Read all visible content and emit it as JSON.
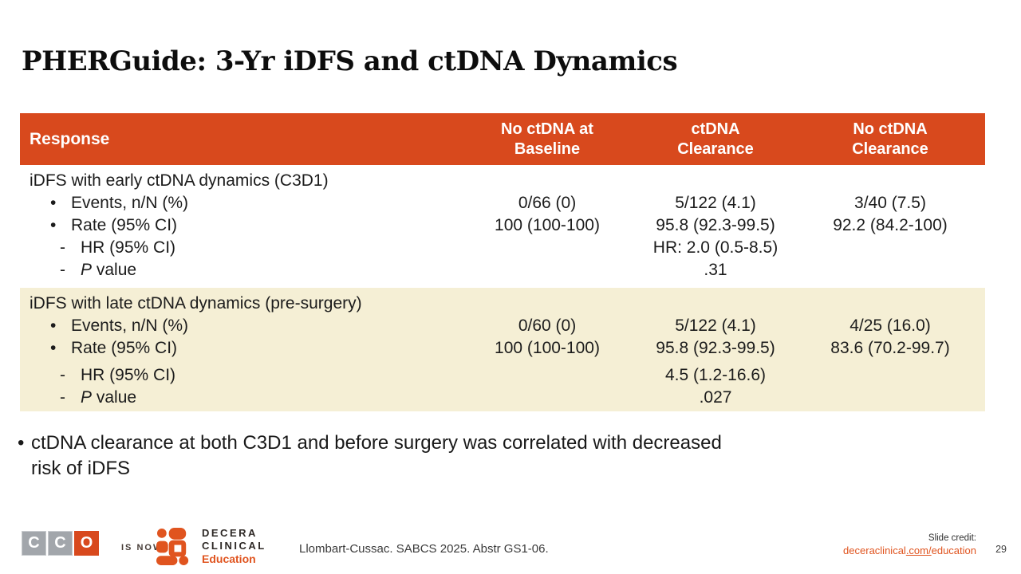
{
  "slide": {
    "title": "PHERGuide: 3-Yr iDFS and ctDNA Dynamics",
    "page_number": "29"
  },
  "table": {
    "header": {
      "response": "Response",
      "cols": [
        {
          "line1": "No ctDNA at",
          "line2": "Baseline"
        },
        {
          "line1": "ctDNA",
          "line2": "Clearance"
        },
        {
          "line1": "No ctDNA",
          "line2": "Clearance"
        }
      ]
    },
    "groups": [
      {
        "bg": "white",
        "lines": [
          {
            "label": {
              "text": "iDFS with early ctDNA dynamics (C3D1)",
              "level": 0
            },
            "values": [
              "",
              "",
              ""
            ]
          },
          {
            "label": {
              "bullet": "•",
              "text": "Events, n/N (%)",
              "level": 1
            },
            "values": [
              "0/66 (0)",
              "5/122 (4.1)",
              "3/40 (7.5)"
            ]
          },
          {
            "label": {
              "bullet": "•",
              "text": "Rate (95% CI)",
              "level": 1
            },
            "values": [
              "100 (100-100)",
              "95.8 (92.3-99.5)",
              "92.2 (84.2-100)"
            ]
          },
          {
            "label": {
              "bullet": "-",
              "text": "HR (95% CI)",
              "level": 2
            },
            "values": [
              "",
              "HR: 2.0 (0.5-8.5)",
              ""
            ]
          },
          {
            "label": {
              "bullet": "-",
              "text": "P value",
              "level": 2,
              "italic_first": true
            },
            "values": [
              "",
              ".31",
              ""
            ]
          }
        ]
      },
      {
        "bg": "cream",
        "lines": [
          {
            "label": {
              "text": "iDFS with late ctDNA dynamics (pre-surgery)",
              "level": 0
            },
            "values": [
              "",
              "",
              ""
            ]
          },
          {
            "label": {
              "bullet": "•",
              "text": "Events, n/N (%)",
              "level": 1
            },
            "values": [
              "0/60 (0)",
              "5/122 (4.1)",
              "4/25 (16.0)"
            ]
          },
          {
            "label": {
              "bullet": "•",
              "text": "Rate (95% CI)",
              "level": 1
            },
            "values": [
              "100 (100-100)",
              "95.8 (92.3-99.5)",
              "83.6 (70.2-99.7)"
            ]
          },
          {
            "label": {
              "bullet": "-",
              "text": "HR (95% CI)",
              "level": 2
            },
            "values": [
              "",
              "4.5 (1.2-16.6)",
              ""
            ]
          },
          {
            "label": {
              "bullet": "-",
              "text": "P value",
              "level": 2,
              "italic_first": true
            },
            "values": [
              "",
              ".027",
              ""
            ]
          }
        ]
      }
    ]
  },
  "takeaway": {
    "bullet": "•",
    "lines": [
      "ctDNA clearance at both C3D1 and before surgery was correlated with decreased",
      "risk of iDFS"
    ]
  },
  "footer": {
    "cco_letters": [
      "C",
      "C",
      "O"
    ],
    "is_now": "IS NOW",
    "decera": {
      "line1": "DECERA",
      "line2": "CLINICAL",
      "line3": "Education"
    },
    "citation": "Llombart-Cussac. SABCS 2025. Abstr GS1-06.",
    "credit_label": "Slide credit:",
    "credit_link": {
      "pre": "deceraclinical",
      "mid": ".com/",
      "post": "education"
    }
  },
  "colors": {
    "header_red": "#D8491D",
    "cream_row": "#F5EFD5",
    "orange_accent": "#E0541F",
    "cco_gray": "#A2A6AB"
  }
}
